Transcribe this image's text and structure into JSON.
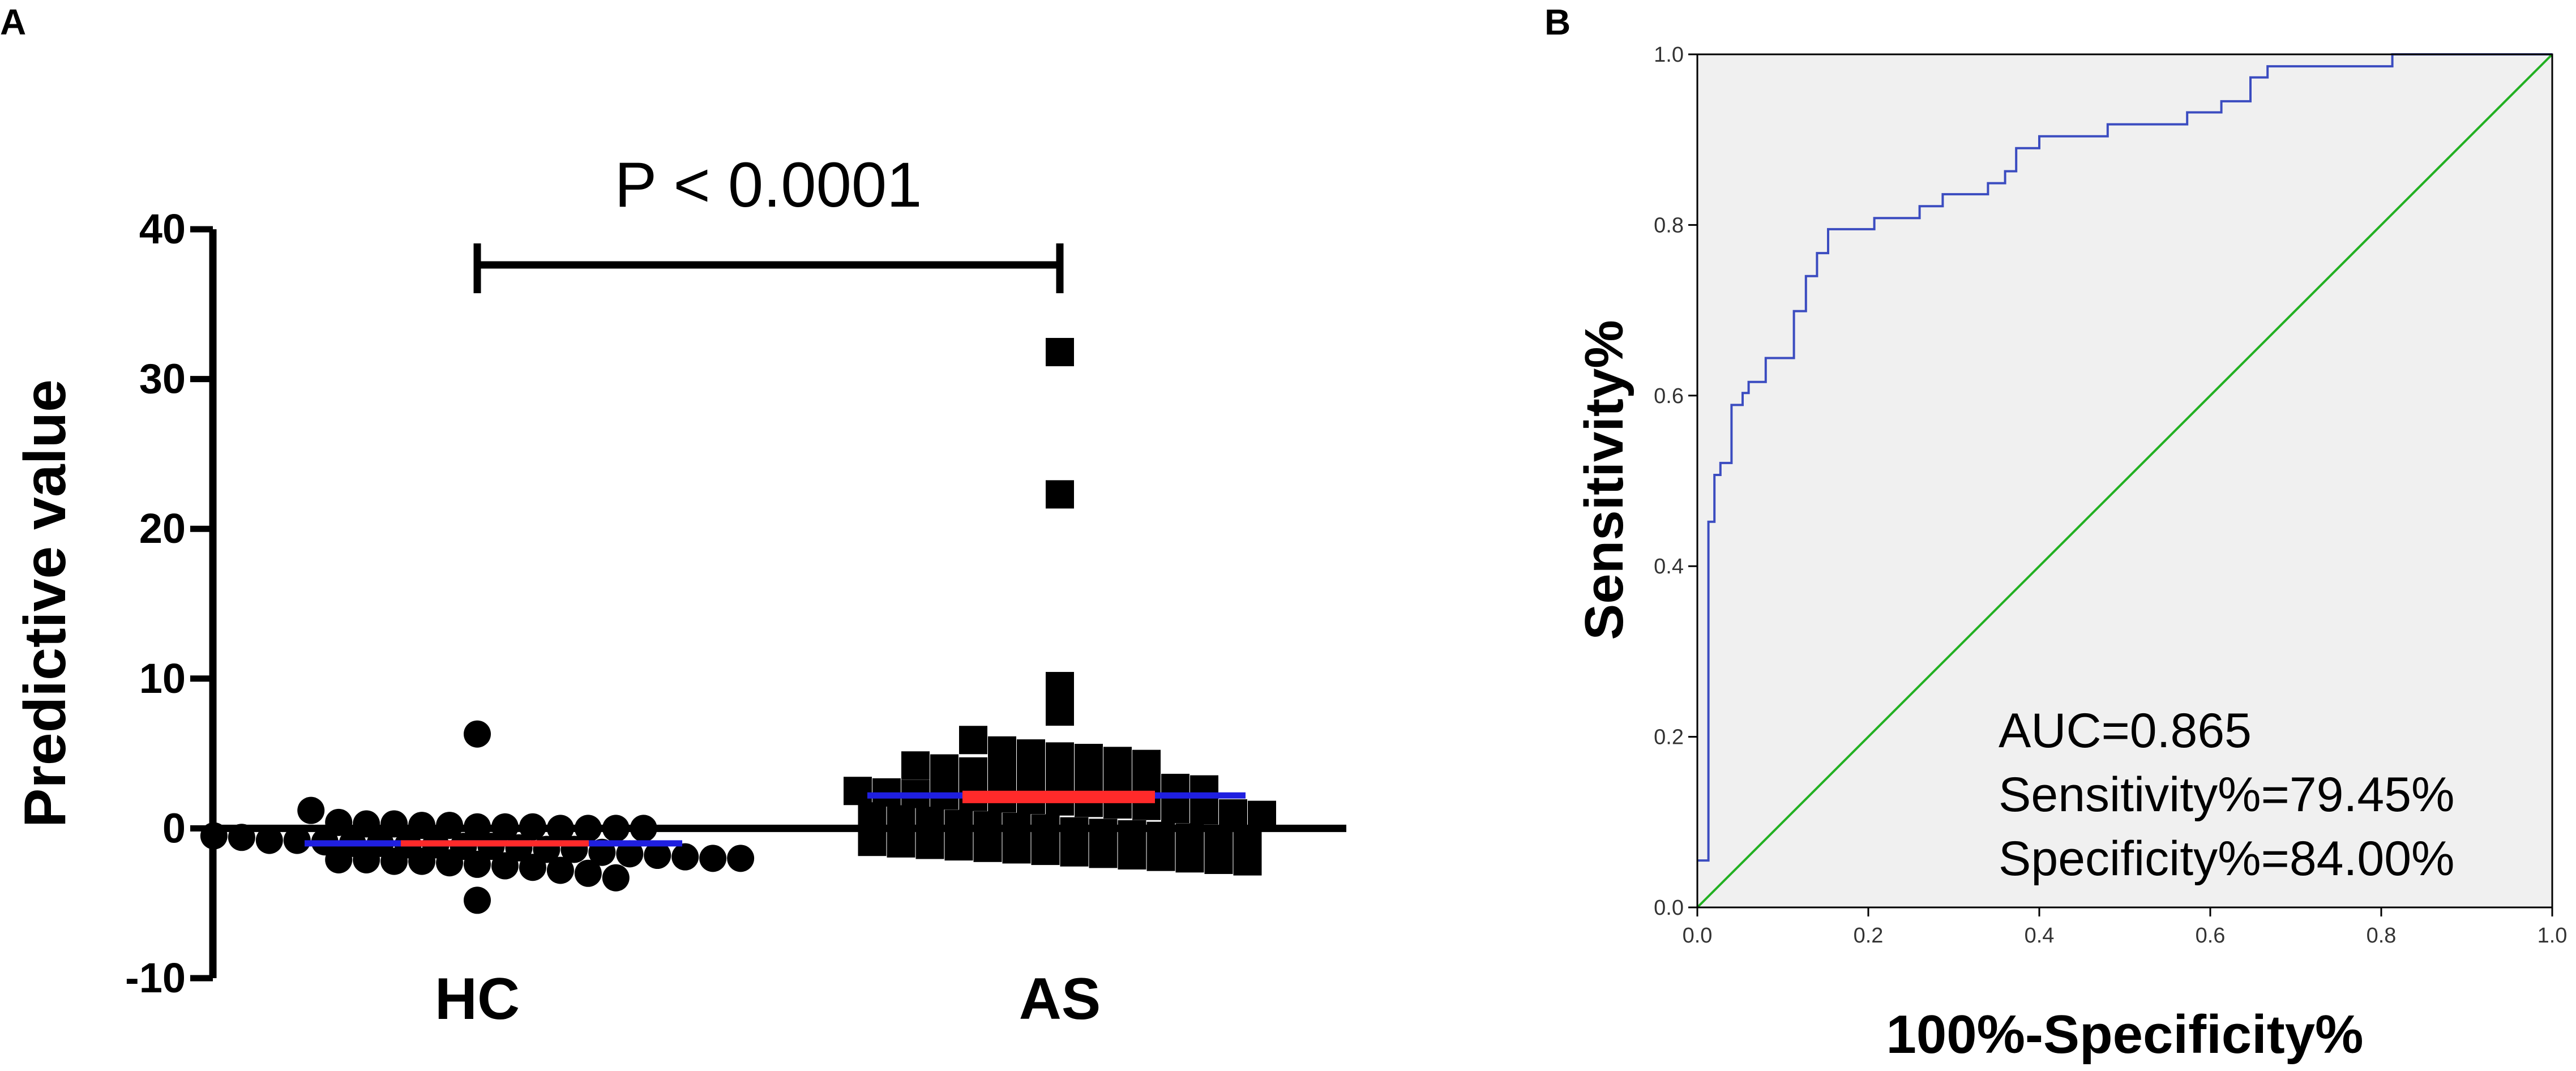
{
  "panels": {
    "a_label": "A",
    "b_label": "B"
  },
  "chart_data": [
    {
      "type": "scatter",
      "ylabel": "Predictive value",
      "ylim": [
        -10,
        40
      ],
      "yticks": [
        "40",
        "30",
        "20",
        "10",
        "0",
        "-10"
      ],
      "ytick_values": [
        40,
        30,
        20,
        10,
        0,
        -10
      ],
      "categories": [
        "HC",
        "AS"
      ],
      "annotation": "P < 0.0001",
      "colors": {
        "points": "#000000",
        "mean_line": "#1f1fe0",
        "median_line": "#ff2a2a"
      },
      "series": [
        {
          "name": "HC",
          "mean": -1.0,
          "median": -1.0,
          "values": [
            6.3,
            1.2,
            0.4,
            0.3,
            0.3,
            0.2,
            0.2,
            0.1,
            0.1,
            0.1,
            0.0,
            0.0,
            0.0,
            0.0,
            -0.5,
            -0.6,
            -0.8,
            -0.8,
            -0.9,
            -1.0,
            -1.0,
            -1.1,
            -1.1,
            -1.2,
            -1.2,
            -1.3,
            -1.4,
            -1.4,
            -1.6,
            -1.7,
            -1.8,
            -1.9,
            -2.0,
            -2.0,
            -2.1,
            -2.1,
            -2.2,
            -2.2,
            -2.3,
            -2.4,
            -2.5,
            -2.6,
            -2.8,
            -3.0,
            -3.3,
            -4.8
          ]
        },
        {
          "name": "AS",
          "mean": 2.2,
          "median": 2.1,
          "values": [
            31.8,
            22.3,
            9.5,
            7.8,
            5.9,
            5.2,
            5.0,
            4.8,
            4.7,
            4.5,
            4.3,
            4.2,
            4.0,
            3.8,
            3.7,
            3.5,
            3.3,
            3.2,
            3.0,
            2.9,
            2.7,
            2.6,
            2.5,
            2.4,
            2.3,
            2.2,
            2.1,
            2.0,
            1.9,
            1.8,
            1.7,
            1.6,
            1.5,
            1.3,
            1.2,
            1.0,
            0.9,
            0.8,
            0.6,
            0.5,
            0.3,
            0.2,
            0.1,
            0.0,
            -0.2,
            -0.3,
            -0.4,
            -0.5,
            -0.6,
            -0.7,
            -0.8,
            -0.9,
            -1.0,
            -1.1,
            -1.2,
            -1.3,
            -1.4,
            -1.5,
            -1.6,
            -1.7,
            -1.8,
            -1.9,
            -2.0,
            -2.1,
            -2.2
          ]
        }
      ]
    },
    {
      "type": "line",
      "xlabel": "100%-Specificity%",
      "ylabel": "Sensitivity%",
      "xlim": [
        0,
        1
      ],
      "ylim": [
        0,
        1
      ],
      "xticks": [
        "0.0",
        "0.2",
        "0.4",
        "0.6",
        "0.8",
        "1.0"
      ],
      "yticks": [
        "0.0",
        "0.2",
        "0.4",
        "0.6",
        "0.8",
        "1.0"
      ],
      "tick_values": [
        0,
        0.2,
        0.4,
        0.6,
        0.8,
        1.0
      ],
      "annotations": [
        "AUC=0.865",
        "Sensitivity%=79.45%",
        "Specificity%=84.00%"
      ],
      "background": "#f0f0f0",
      "series": [
        {
          "color": "#3b4cc0",
          "x": [
            0,
            0.013,
            0.013,
            0.02,
            0.02,
            0.027,
            0.027,
            0.04,
            0.04,
            0.053,
            0.053,
            0.06,
            0.06,
            0.067,
            0.067,
            0.08,
            0.08,
            0.113,
            0.113,
            0.127,
            0.127,
            0.14,
            0.14,
            0.153,
            0.153,
            0.16,
            0.16,
            0.207,
            0.207,
            0.26,
            0.26,
            0.287,
            0.287,
            0.34,
            0.34,
            0.36,
            0.36,
            0.373,
            0.373,
            0.4,
            0.4,
            0.48,
            0.48,
            0.573,
            0.573,
            0.613,
            0.613,
            0.647,
            0.647,
            0.667,
            0.667,
            0.813,
            0.813,
            1.0
          ],
          "y": [
            0.055,
            0.055,
            0.452,
            0.452,
            0.507,
            0.507,
            0.521,
            0.521,
            0.589,
            0.589,
            0.603,
            0.603,
            0.616,
            0.616,
            0.616,
            0.616,
            0.644,
            0.644,
            0.699,
            0.699,
            0.74,
            0.74,
            0.767,
            0.767,
            0.795,
            0.795,
            0.795,
            0.795,
            0.808,
            0.808,
            0.822,
            0.822,
            0.836,
            0.836,
            0.849,
            0.849,
            0.863,
            0.863,
            0.89,
            0.89,
            0.904,
            0.904,
            0.918,
            0.918,
            0.932,
            0.932,
            0.945,
            0.945,
            0.973,
            0.973,
            0.986,
            0.986,
            1.0,
            1.0
          ]
        },
        {
          "color": "#22b022",
          "x": [
            0,
            1
          ],
          "y": [
            0,
            1
          ]
        }
      ]
    }
  ]
}
